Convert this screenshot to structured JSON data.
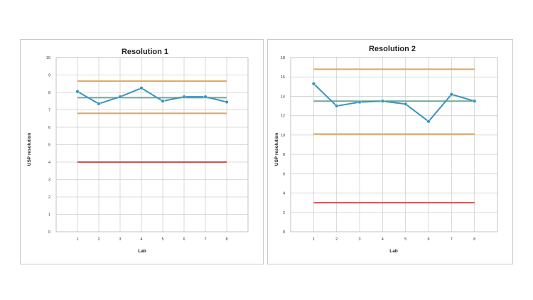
{
  "chart_data": [
    {
      "type": "line",
      "title": "Resolution 1",
      "xlabel": "Lab",
      "ylabel": "USP resolution",
      "x": [
        1,
        2,
        3,
        4,
        5,
        6,
        7,
        8
      ],
      "xlim": [
        0,
        9
      ],
      "ylim": [
        0,
        10
      ],
      "yticks": [
        0,
        1,
        2,
        3,
        4,
        5,
        6,
        7,
        8,
        9,
        10
      ],
      "grid": true,
      "legend": "none",
      "series": [
        {
          "values": [
            8.05,
            7.35,
            7.75,
            8.25,
            7.5,
            7.75,
            7.75,
            7.45
          ],
          "color": "#3a94bd",
          "markers": true
        }
      ],
      "reference_lines": [
        {
          "y": 8.65,
          "color": "#e3a559"
        },
        {
          "y": 7.7,
          "color": "#6aaa97"
        },
        {
          "y": 6.8,
          "color": "#e3a559"
        },
        {
          "y": 4.0,
          "color": "#c95454"
        }
      ]
    },
    {
      "type": "line",
      "title": "Resolution 2",
      "xlabel": "Lab",
      "ylabel": "USP resolution",
      "x": [
        1,
        2,
        3,
        4,
        5,
        6,
        7,
        8
      ],
      "xlim": [
        0,
        9
      ],
      "ylim": [
        0,
        18
      ],
      "yticks": [
        0,
        2,
        4,
        6,
        8,
        10,
        12,
        14,
        16,
        18
      ],
      "grid": true,
      "legend": "none",
      "series": [
        {
          "values": [
            15.3,
            13.0,
            13.4,
            13.5,
            13.2,
            11.4,
            14.2,
            13.5
          ],
          "color": "#3a94bd",
          "markers": true
        }
      ],
      "reference_lines": [
        {
          "y": 16.8,
          "color": "#e3a559"
        },
        {
          "y": 13.5,
          "color": "#6aaa97"
        },
        {
          "y": 10.1,
          "color": "#e3a559"
        },
        {
          "y": 3.0,
          "color": "#c95454"
        }
      ]
    }
  ]
}
